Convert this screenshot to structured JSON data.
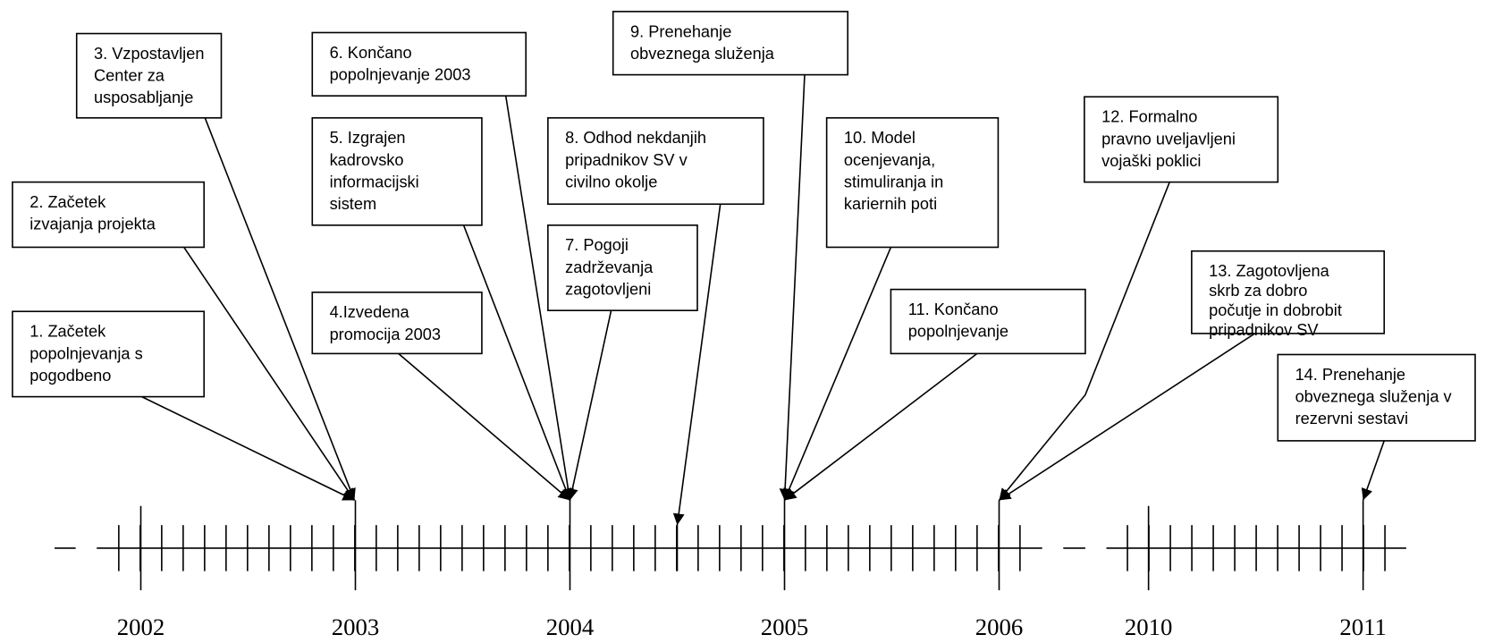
{
  "events": [
    {
      "lines": [
        "1. Začetek",
        "popolnjevanja s",
        "pogodbeno"
      ]
    },
    {
      "lines": [
        "2. Začetek",
        "izvajanja projekta"
      ]
    },
    {
      "lines": [
        "3. Vzpostavljen",
        "Center za",
        "usposabljanje"
      ]
    },
    {
      "lines": [
        "4.Izvedena",
        "promocija 2003"
      ]
    },
    {
      "lines": [
        "5. Izgrajen",
        "kadrovsko",
        "informacijski",
        "sistem"
      ]
    },
    {
      "lines": [
        "6. Končano",
        "popolnjevanje 2003"
      ]
    },
    {
      "lines": [
        "7. Pogoji",
        "zadrževanja",
        "zagotovljeni"
      ]
    },
    {
      "lines": [
        "8. Odhod nekdanjih",
        "pripadnikov SV v",
        "civilno okolje"
      ]
    },
    {
      "lines": [
        "9. Prenehanje",
        "obveznega služenja"
      ]
    },
    {
      "lines": [
        "10. Model",
        "ocenjevanja,",
        "stimuliranja in",
        "kariernih poti"
      ]
    },
    {
      "lines": [
        "11. Končano",
        "popolnjevanje"
      ]
    },
    {
      "lines": [
        "12. Formalno",
        "pravno uveljavljeni",
        "vojaški poklici"
      ]
    },
    {
      "lines": [
        "13. Zagotovljena",
        "skrb za dobro",
        "počutje in dobrobit",
        "pripadnikov SV"
      ]
    },
    {
      "lines": [
        "14. Prenehanje",
        "obveznega služenja v",
        "rezervni sestavi"
      ]
    }
  ],
  "years": [
    "2002",
    "2003",
    "2004",
    "2005",
    "2006",
    "2010",
    "2011"
  ]
}
